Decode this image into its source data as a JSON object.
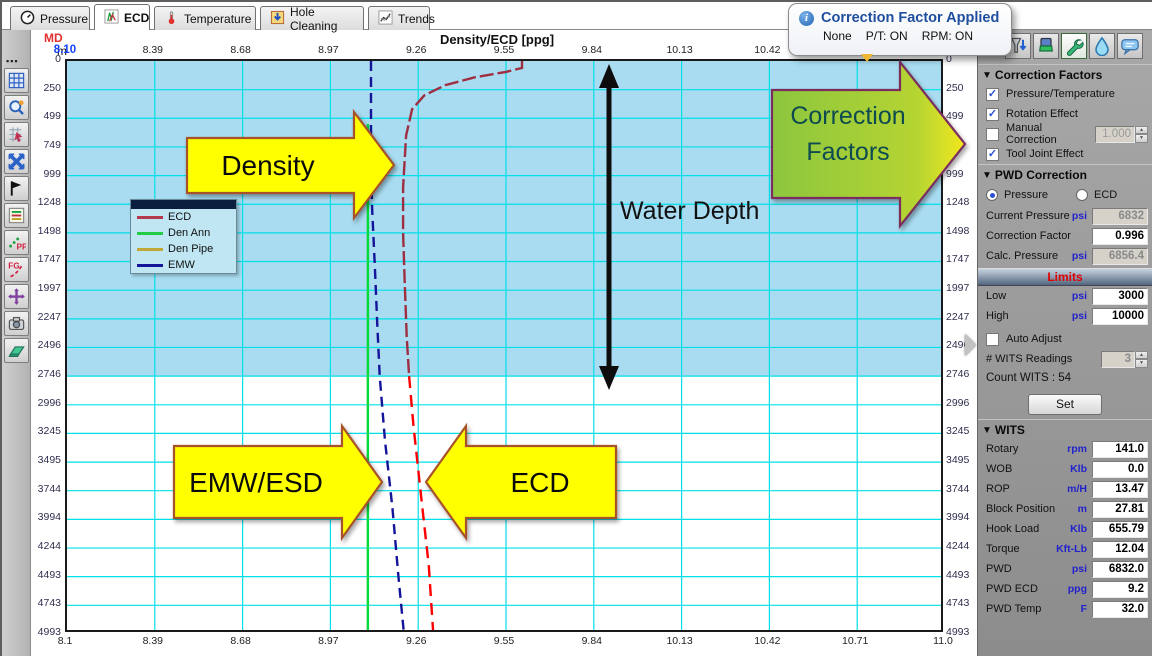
{
  "tabs": {
    "items": [
      {
        "label": "Pressure",
        "icon": "gauge-icon",
        "active": false
      },
      {
        "label": "ECD",
        "icon": "ecd-chart-icon",
        "active": true
      },
      {
        "label": "Temperature",
        "icon": "thermometer-icon",
        "active": false
      },
      {
        "label": "Hole Cleaning",
        "icon": "hole-cleaning-icon",
        "active": false
      },
      {
        "label": "Trends",
        "icon": "trends-icon",
        "active": false
      }
    ]
  },
  "notification": {
    "title": "Correction Factor Applied",
    "status": "None",
    "pt": "P/T: ON",
    "rpm": "RPM: ON"
  },
  "left_toolbar": {
    "items": [
      {
        "name": "grid-icon"
      },
      {
        "name": "zoom-icon"
      },
      {
        "name": "chart-pointer-icon"
      },
      {
        "name": "expand-arrows-icon"
      },
      {
        "name": "flag-icon"
      },
      {
        "name": "legend-lines-icon"
      },
      {
        "name": "pp-scatter-icon"
      },
      {
        "name": "fg-curve-icon"
      },
      {
        "name": "move-icon"
      },
      {
        "name": "camera-icon"
      },
      {
        "name": "notebook-icon"
      }
    ]
  },
  "right_toolbar": {
    "items": [
      {
        "name": "funnel-icon",
        "active": false
      },
      {
        "name": "brush-icon",
        "active": false
      },
      {
        "name": "wrench-icon",
        "active": true
      },
      {
        "name": "droplet-icon",
        "active": false
      },
      {
        "name": "chat-icon",
        "active": false
      }
    ]
  },
  "chart_data": {
    "type": "line",
    "title": "Density/ECD [ppg]",
    "md_label": "MD",
    "depth_unit": "m",
    "x_axis": {
      "min": 8.1,
      "max": 11.0,
      "top_labels": [
        "8.10",
        "8.39",
        "8.68",
        "8.97",
        "9.26",
        "9.55",
        "9.84",
        "10.13",
        "10.42",
        "10.71",
        "11.0"
      ],
      "bottom_labels": [
        "8.1",
        "8.39",
        "8.68",
        "8.97",
        "9.26",
        "9.55",
        "9.84",
        "10.13",
        "10.42",
        "10.71",
        "11.0"
      ]
    },
    "y_axis": {
      "min": 0,
      "max": 4993,
      "ticks": [
        0,
        250,
        499,
        749,
        999,
        1248,
        1498,
        1747,
        1997,
        2247,
        2496,
        2746,
        2996,
        3245,
        3495,
        3744,
        3994,
        4244,
        4493,
        4743,
        4993
      ]
    },
    "water_depth_m": 2746,
    "water_color": "#a9dcf1",
    "grid_color": "#00e0e8",
    "series": [
      {
        "name": "Den Pipe",
        "color": "#bfa93a",
        "dash": "",
        "width": 2.2,
        "points": [
          [
            9.094,
            550
          ],
          [
            9.094,
            4993
          ]
        ]
      },
      {
        "name": "Den Ann",
        "color": "#00dc3c",
        "dash": "",
        "width": 2.4,
        "points": [
          [
            9.094,
            550
          ],
          [
            9.094,
            4993
          ]
        ]
      },
      {
        "name": "EMW",
        "color": "#14149b",
        "dash": "10,6",
        "width": 2.4,
        "points": [
          [
            9.104,
            0
          ],
          [
            9.104,
            900
          ],
          [
            9.108,
            1300
          ],
          [
            9.117,
            1800
          ],
          [
            9.125,
            2300
          ],
          [
            9.133,
            2746
          ],
          [
            9.15,
            3300
          ],
          [
            9.175,
            3900
          ],
          [
            9.195,
            4500
          ],
          [
            9.213,
            4993
          ]
        ]
      },
      {
        "name": "ECD-upper",
        "color": "#9e2f42",
        "dash": "14,4",
        "width": 2.4,
        "points": [
          [
            9.603,
            0
          ],
          [
            9.603,
            60
          ],
          [
            9.55,
            95
          ],
          [
            9.45,
            140
          ],
          [
            9.35,
            210
          ],
          [
            9.28,
            300
          ],
          [
            9.24,
            420
          ],
          [
            9.22,
            650
          ],
          [
            9.21,
            1100
          ],
          [
            9.21,
            1500
          ],
          [
            9.215,
            1900
          ],
          [
            9.222,
            2400
          ],
          [
            9.23,
            2746
          ]
        ]
      },
      {
        "name": "ECD-lower",
        "color": "#ff0000",
        "dash": "12,7",
        "width": 2.4,
        "points": [
          [
            9.23,
            2746
          ],
          [
            9.245,
            3200
          ],
          [
            9.27,
            3800
          ],
          [
            9.295,
            4400
          ],
          [
            9.31,
            4993
          ]
        ]
      }
    ],
    "legend": {
      "entries": [
        {
          "label": "ECD",
          "color": "#b23a4a"
        },
        {
          "label": "Den Ann",
          "color": "#22cc44"
        },
        {
          "label": "Den Pipe",
          "color": "#c0a838"
        },
        {
          "label": "EMW",
          "color": "#151599"
        }
      ]
    }
  },
  "annotations": {
    "density": {
      "text": "Density"
    },
    "emw_esd": {
      "text": "EMW/ESD"
    },
    "ecd": {
      "text": "ECD"
    },
    "water_depth": {
      "text": "Water Depth"
    },
    "correction_factors": {
      "line1": "Correction",
      "line2": "Factors"
    }
  },
  "panel": {
    "correction_factors": {
      "header": "Correction Factors",
      "checks": [
        {
          "label": "Pressure/Temperature",
          "checked": true
        },
        {
          "label": "Rotation Effect",
          "checked": true
        },
        {
          "label": "Manual Correction",
          "checked": false,
          "value": "1.000",
          "disabled": true
        },
        {
          "label": "Tool Joint Effect",
          "checked": true
        }
      ]
    },
    "pwd_correction": {
      "header": "PWD Correction",
      "radios": [
        {
          "label": "Pressure",
          "selected": true
        },
        {
          "label": "ECD",
          "selected": false
        }
      ],
      "rows": [
        {
          "label": "Current Pressure",
          "unit": "psi",
          "value": "6832",
          "disabled": true
        },
        {
          "label": "Correction Factor",
          "unit": "",
          "value": "0.996",
          "disabled": false
        },
        {
          "label": "Calc. Pressure",
          "unit": "psi",
          "value": "6856.4",
          "disabled": true
        }
      ]
    },
    "limits": {
      "header": "Limits",
      "rows": [
        {
          "label": "Low",
          "unit": "psi",
          "value": "3000",
          "disabled": false
        },
        {
          "label": "High",
          "unit": "psi",
          "value": "10000",
          "disabled": false
        }
      ],
      "auto_adjust": {
        "label": "Auto Adjust",
        "checked": false
      },
      "wits_readings": {
        "label": "# WITS Readings",
        "value": "3",
        "disabled": true
      },
      "count_text": "Count WITS : 54",
      "set_button": "Set"
    },
    "wits": {
      "header": "WITS",
      "rows": [
        {
          "label": "Rotary",
          "unit": "rpm",
          "value": "141.0"
        },
        {
          "label": "WOB",
          "unit": "Klb",
          "value": "0.0"
        },
        {
          "label": "ROP",
          "unit": "m/H",
          "value": "13.47"
        },
        {
          "label": "Block Position",
          "unit": "m",
          "value": "27.81"
        },
        {
          "label": "Hook Load",
          "unit": "Klb",
          "value": "655.79"
        },
        {
          "label": "Torque",
          "unit": "Kft-Lb",
          "value": "12.04"
        },
        {
          "label": "PWD",
          "unit": "psi",
          "value": "6832.0"
        },
        {
          "label": "PWD ECD",
          "unit": "ppg",
          "value": "9.2"
        },
        {
          "label": "PWD Temp",
          "unit": "F",
          "value": "32.0"
        }
      ]
    }
  }
}
